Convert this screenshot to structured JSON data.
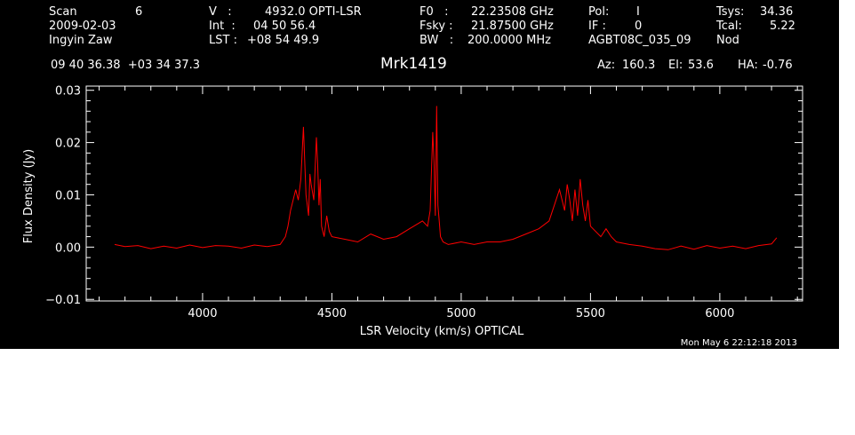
{
  "header": {
    "scan_label": "Scan",
    "scan_value": "6",
    "date": "2009-02-03",
    "observer": "Ingyin Zaw",
    "v_label": "V   :",
    "v_value": "4932.0 OPTI-LSR",
    "int_label": "Int  :",
    "int_value": "04 50 56.4",
    "lst_label": "LST :",
    "lst_value": "+08 54 49.9",
    "f0_label": "F0   :",
    "f0_value": "22.23508 GHz",
    "fsky_label": "Fsky :",
    "fsky_value": "21.87500 GHz",
    "bw_label": "BW   :",
    "bw_value": "200.0000 MHz",
    "pol_label": "Pol:",
    "pol_value": "I",
    "if_label": "IF :",
    "if_value": "0",
    "project": "AGBT08C_035_09",
    "tsys_label": "Tsys:",
    "tsys_value": "34.36",
    "tcal_label": "Tcal:",
    "tcal_value": "5.22",
    "mode": "Nod",
    "coords": "09 40 36.38  +03 34 37.3",
    "source": "Mrk1419",
    "az_label": "Az:",
    "az_value": "160.3",
    "el_label": "El:",
    "el_value": "53.6",
    "ha_label": "HA:",
    "ha_value": "-0.76"
  },
  "footer_timestamp": "Mon May  6 22:12:18 2013",
  "colors": {
    "background": "#000000",
    "axes": "#ffffff",
    "trace": "#ff0000"
  },
  "chart_data": {
    "type": "line",
    "title": "Mrk1419",
    "xlabel": "LSR Velocity (km/s) OPTICAL",
    "ylabel": "Flux Density (Jy)",
    "xlim": [
      3550,
      6320
    ],
    "ylim": [
      -0.0103,
      0.0308
    ],
    "x_ticks": [
      4000,
      4500,
      5000,
      5500,
      6000
    ],
    "x_tick_labels": [
      "4000",
      "4500",
      "5000",
      "5500",
      "6000"
    ],
    "y_ticks": [
      -0.01,
      0.0,
      0.01,
      0.02,
      0.03
    ],
    "y_tick_labels": [
      "−0.01",
      "0.00",
      "0.01",
      "0.02",
      "0.03"
    ],
    "grid": false,
    "series": [
      {
        "x": [
          3660,
          3700,
          3750,
          3800,
          3850,
          3900,
          3950,
          4000,
          4050,
          4100,
          4150,
          4200,
          4250,
          4300,
          4320,
          4330,
          4340,
          4350,
          4360,
          4370,
          4380,
          4390,
          4400,
          4410,
          4415,
          4420,
          4430,
          4440,
          4445,
          4450,
          4455,
          4460,
          4470,
          4480,
          4490,
          4500,
          4550,
          4600,
          4650,
          4700,
          4750,
          4800,
          4850,
          4870,
          4880,
          4890,
          4895,
          4900,
          4905,
          4910,
          4915,
          4920,
          4930,
          4950,
          5000,
          5050,
          5100,
          5150,
          5200,
          5250,
          5300,
          5340,
          5360,
          5380,
          5400,
          5410,
          5420,
          5430,
          5440,
          5450,
          5460,
          5470,
          5480,
          5490,
          5500,
          5520,
          5540,
          5560,
          5580,
          5600,
          5650,
          5700,
          5750,
          5800,
          5850,
          5900,
          5950,
          6000,
          6050,
          6100,
          6150,
          6200,
          6220
        ],
        "y": [
          0.0005,
          0.0001,
          0.0003,
          -0.0003,
          0.0002,
          -0.0002,
          0.0004,
          -0.0001,
          0.0003,
          0.0002,
          -0.0002,
          0.0004,
          0.0001,
          0.0005,
          0.002,
          0.004,
          0.007,
          0.009,
          0.011,
          0.009,
          0.013,
          0.023,
          0.01,
          0.006,
          0.014,
          0.012,
          0.009,
          0.021,
          0.016,
          0.008,
          0.013,
          0.004,
          0.002,
          0.006,
          0.003,
          0.002,
          0.0015,
          0.001,
          0.0025,
          0.0015,
          0.002,
          0.0035,
          0.005,
          0.004,
          0.007,
          0.022,
          0.016,
          0.006,
          0.027,
          0.008,
          0.005,
          0.002,
          0.001,
          0.0005,
          0.001,
          0.0005,
          0.001,
          0.001,
          0.0015,
          0.0025,
          0.0035,
          0.005,
          0.008,
          0.011,
          0.007,
          0.012,
          0.009,
          0.005,
          0.011,
          0.006,
          0.013,
          0.008,
          0.005,
          0.009,
          0.004,
          0.003,
          0.002,
          0.0035,
          0.002,
          0.001,
          0.0005,
          0.0002,
          -0.0003,
          -0.0005,
          0.0002,
          -0.0004,
          0.0003,
          -0.0002,
          0.0002,
          -0.0003,
          0.0003,
          0.0006,
          0.0018
        ]
      }
    ]
  }
}
